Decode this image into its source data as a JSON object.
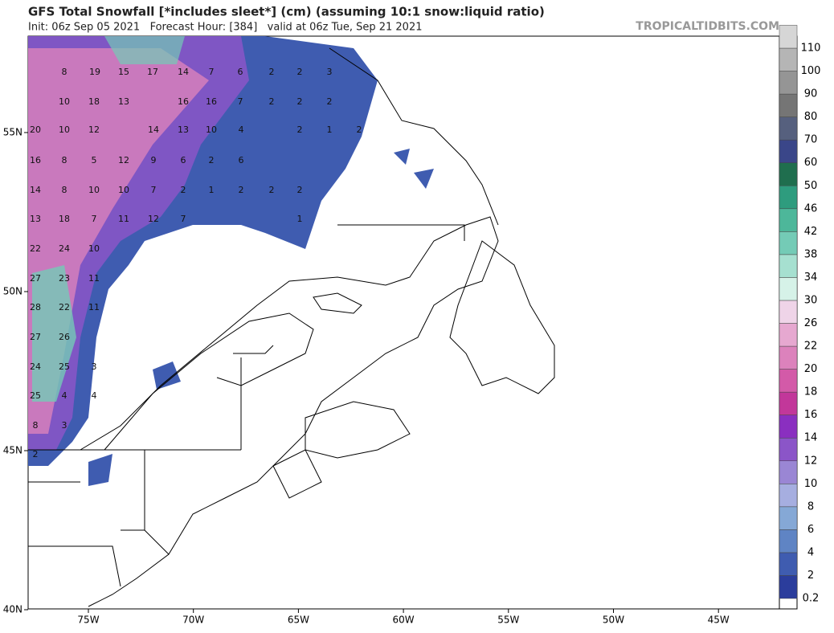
{
  "header": {
    "title": "GFS Total Snowfall [*includes sleet*] (cm) (assuming 10:1 snow:liquid ratio)",
    "subtitle": "Init: 06z Sep 05 2021   Forecast Hour: [384]   valid at 06z Tue, Sep 21 2021",
    "site": "TROPICALTIDBITS.COM"
  },
  "map": {
    "lat_labels": [
      "55N",
      "50N",
      "45N",
      "40N"
    ],
    "lon_labels": [
      "75W",
      "70W",
      "65W",
      "60W",
      "55W",
      "50W",
      "45W"
    ],
    "point_labels": [
      8,
      19,
      15,
      17,
      14,
      7,
      6,
      2,
      2,
      3,
      10,
      18,
      13,
      16,
      16,
      7,
      2,
      2,
      2,
      20,
      10,
      12,
      14,
      13,
      10,
      4,
      2,
      1,
      2,
      16,
      8,
      5,
      12,
      9,
      6,
      2,
      6,
      14,
      8,
      10,
      10,
      7,
      2,
      1,
      2,
      2,
      2,
      13,
      18,
      7,
      11,
      12,
      7,
      1,
      22,
      24,
      10,
      27,
      23,
      11,
      28,
      22,
      11,
      27,
      26,
      24,
      25,
      3,
      25,
      4,
      4,
      8,
      3,
      2
    ]
  },
  "colorbar": {
    "levels": [
      0.2,
      2,
      4,
      6,
      8,
      10,
      12,
      14,
      16,
      18,
      20,
      22,
      26,
      30,
      34,
      38,
      42,
      46,
      50,
      60,
      70,
      80,
      90,
      100,
      110
    ],
    "colors": [
      "#2b3d9c",
      "#3f5cb0",
      "#5f84c4",
      "#85a8d6",
      "#a6aee0",
      "#9a86d4",
      "#8b55c8",
      "#8a2fc0",
      "#c2379a",
      "#d35aa8",
      "#dc82bc",
      "#e6a8d0",
      "#efd4e8",
      "#d6f2e8",
      "#a6e0d0",
      "#74cbb6",
      "#4db79a",
      "#2e9c7e",
      "#1f6e4e",
      "#3a4689",
      "#56607e",
      "#757575",
      "#959595",
      "#b5b5b5",
      "#d6d6d6"
    ]
  }
}
